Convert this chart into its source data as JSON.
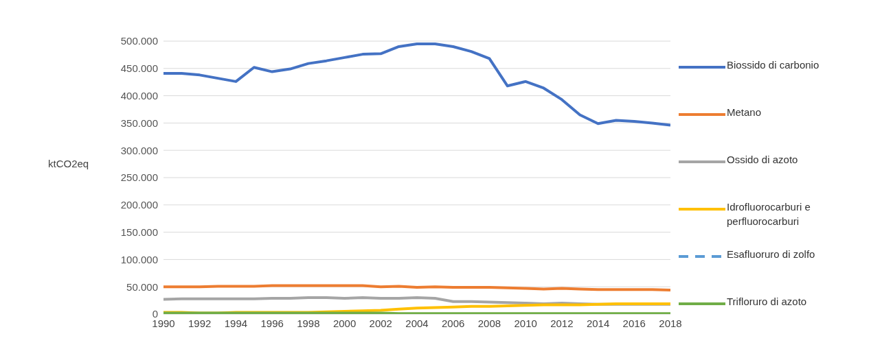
{
  "chart_data": {
    "type": "line",
    "ylabel": "ktCO2eq",
    "x": [
      1990,
      1991,
      1992,
      1993,
      1994,
      1995,
      1996,
      1997,
      1998,
      1999,
      2000,
      2001,
      2002,
      2003,
      2004,
      2005,
      2006,
      2007,
      2008,
      2009,
      2010,
      2011,
      2012,
      2013,
      2014,
      2015,
      2016,
      2017,
      2018
    ],
    "xticks": [
      1990,
      1992,
      1994,
      1996,
      1998,
      2000,
      2002,
      2004,
      2006,
      2008,
      2010,
      2012,
      2014,
      2016,
      2018
    ],
    "xlim": [
      1990,
      2018
    ],
    "ylim": [
      0,
      500000
    ],
    "yticks": [
      {
        "value": 0,
        "label": "0"
      },
      {
        "value": 50000,
        "label": "50.000"
      },
      {
        "value": 100000,
        "label": "100.000"
      },
      {
        "value": 150000,
        "label": "150.000"
      },
      {
        "value": 200000,
        "label": "200.000"
      },
      {
        "value": 250000,
        "label": "250.000"
      },
      {
        "value": 300000,
        "label": "300.000"
      },
      {
        "value": 350000,
        "label": "350.000"
      },
      {
        "value": 400000,
        "label": "400.000"
      },
      {
        "value": 450000,
        "label": "450.000"
      },
      {
        "value": 500000,
        "label": "500.000"
      }
    ],
    "grid": "y",
    "legend": "right",
    "marker": "none",
    "series": [
      {
        "name": "Biossido di carbonio",
        "color": "#4472c4",
        "values": [
          441000,
          441000,
          438000,
          432000,
          426000,
          452000,
          444000,
          449000,
          459000,
          464000,
          470000,
          476000,
          477000,
          490000,
          495000,
          495000,
          490000,
          481000,
          468000,
          418000,
          426000,
          414000,
          393000,
          365000,
          349000,
          355000,
          353000,
          350000,
          346000
        ]
      },
      {
        "name": "Metano",
        "color": "#ed7d31",
        "values": [
          50000,
          50000,
          50000,
          51000,
          51000,
          51000,
          52000,
          52000,
          52000,
          52000,
          52000,
          52000,
          50000,
          51000,
          49000,
          50000,
          49000,
          49000,
          49000,
          48000,
          47000,
          46000,
          47000,
          46000,
          45000,
          45000,
          45000,
          45000,
          44000
        ]
      },
      {
        "name": "Ossido di azoto",
        "color": "#a5a5a5",
        "values": [
          27000,
          28000,
          28000,
          28000,
          28000,
          28000,
          29000,
          29000,
          30000,
          30000,
          29000,
          30000,
          29000,
          29000,
          30000,
          29000,
          23000,
          23000,
          22000,
          21000,
          20000,
          19000,
          20000,
          19000,
          18000,
          18000,
          18000,
          18000,
          18000
        ]
      },
      {
        "name": "Idrofluorocarburi e perfluorocarburi",
        "color": "#ffc000",
        "values": [
          3000,
          3000,
          2000,
          2000,
          3000,
          3000,
          3000,
          3000,
          3000,
          4000,
          5000,
          6000,
          7000,
          9000,
          11000,
          12000,
          13000,
          14000,
          14000,
          15000,
          16000,
          17000,
          17000,
          17000,
          18000,
          19000,
          19000,
          19000,
          19000
        ]
      },
      {
        "name": "Esafluoruro di zolfo",
        "color": "#5b9bd5",
        "line_style": "dashed",
        "values": [
          null,
          null,
          null,
          null,
          null,
          null,
          null,
          null,
          null,
          null,
          null,
          null,
          null,
          null,
          null,
          null,
          null,
          null,
          null,
          null,
          null,
          null,
          null,
          null,
          null,
          null,
          null,
          null,
          null
        ]
      },
      {
        "name": "Trifloruro di azoto",
        "color": "#70ad47",
        "values": [
          2000,
          2000,
          2000,
          2000,
          2000,
          2000,
          2000,
          2000,
          2000,
          2000,
          2000,
          2000,
          2000,
          1000,
          1000,
          1000,
          1000,
          1000,
          1000,
          1000,
          1000,
          1000,
          1000,
          1000,
          1000,
          1000,
          1000,
          1000,
          1000
        ]
      }
    ]
  }
}
